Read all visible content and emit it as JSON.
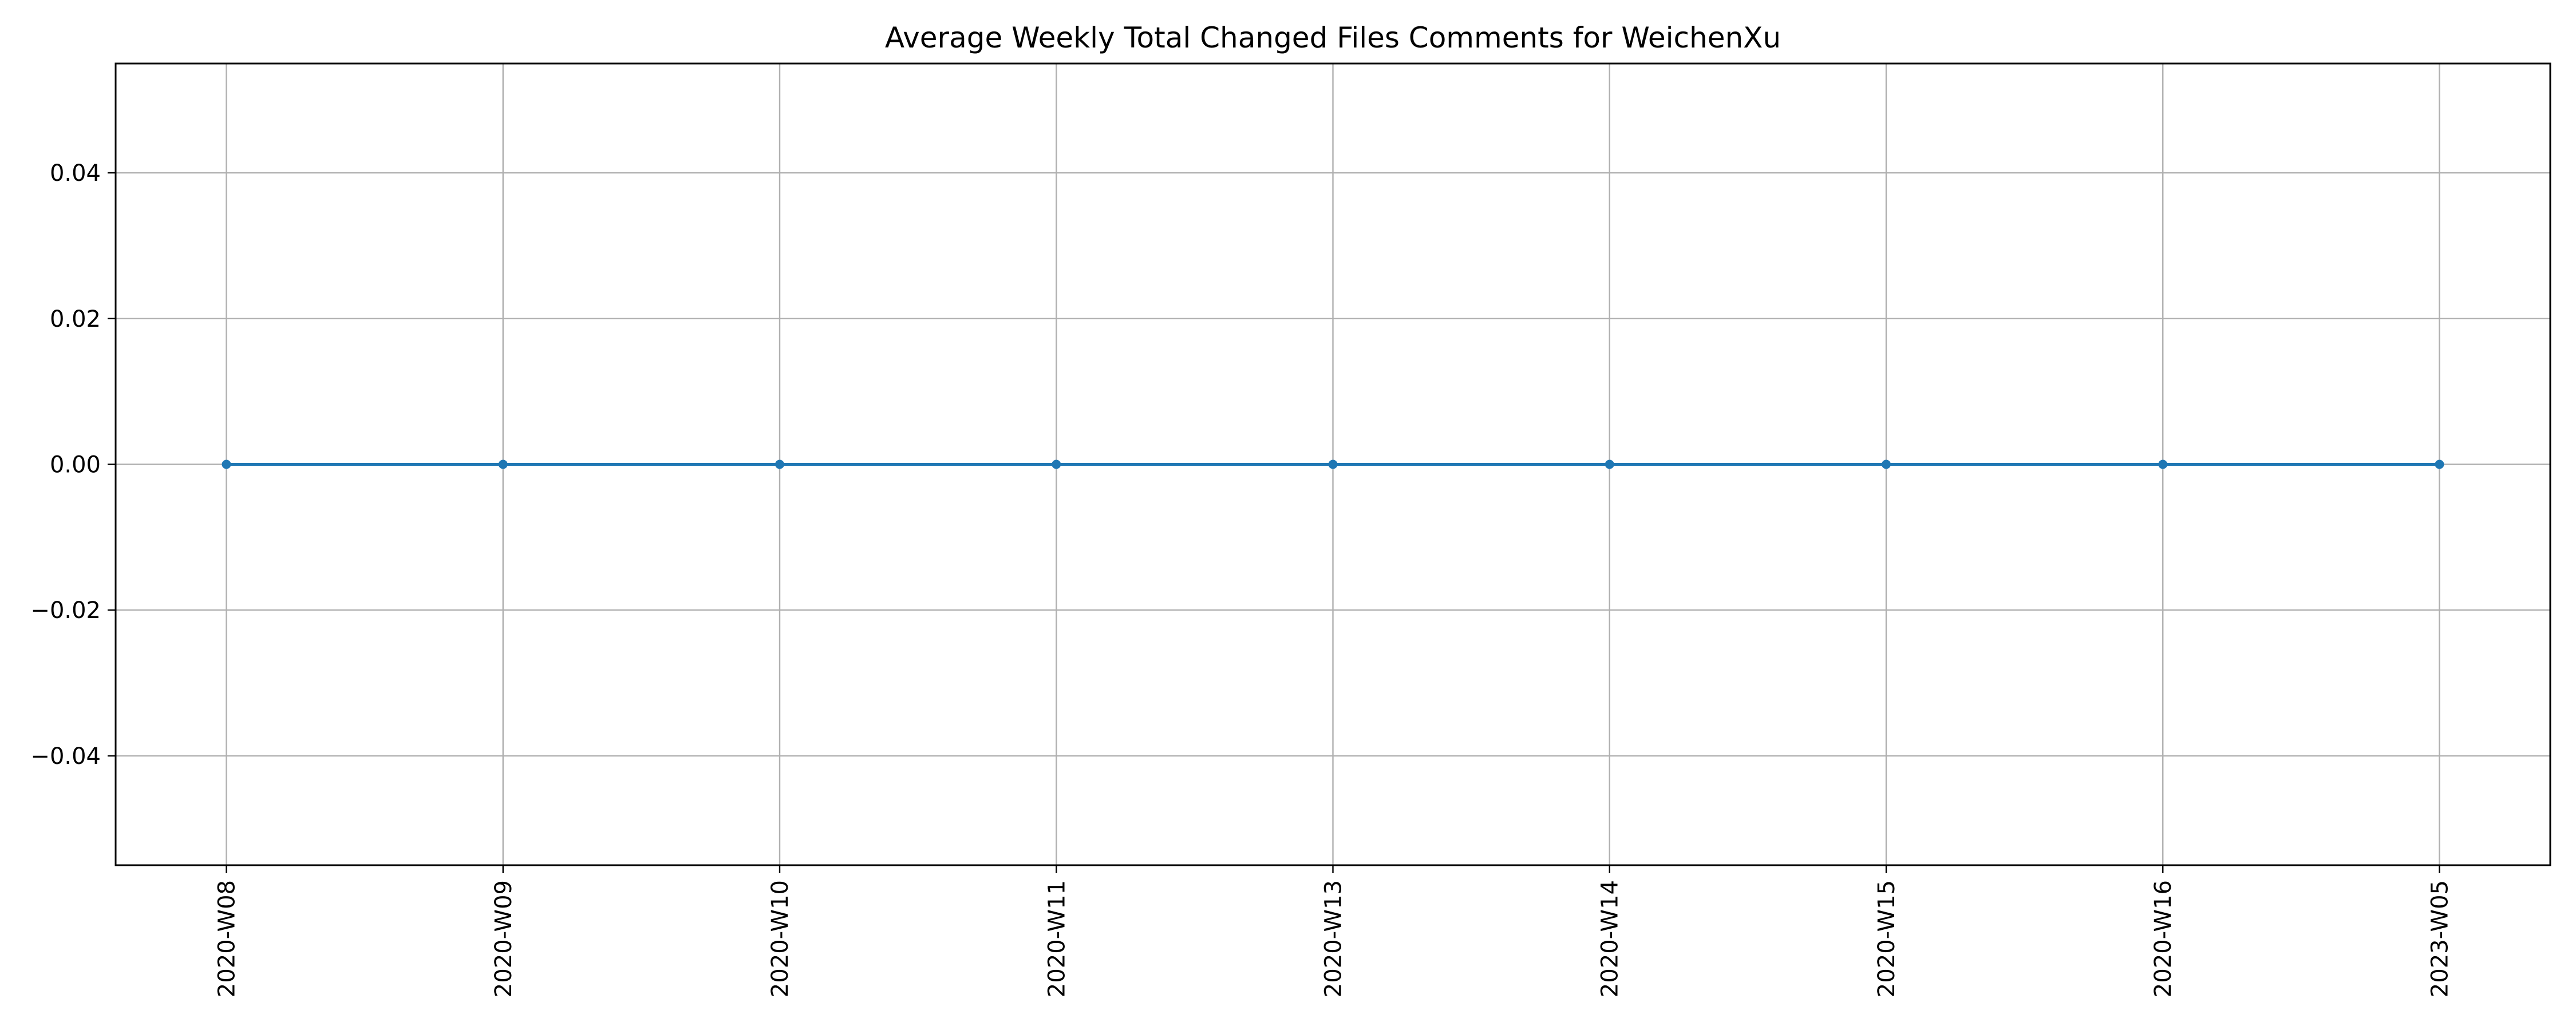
{
  "chart_data": {
    "type": "line",
    "title": "Average Weekly Total Changed Files Comments for WeichenXu",
    "xlabel": "",
    "ylabel": "",
    "categories": [
      "2020-W08",
      "2020-W09",
      "2020-W10",
      "2020-W11",
      "2020-W13",
      "2020-W14",
      "2020-W15",
      "2020-W16",
      "2023-W05"
    ],
    "series": [
      {
        "values": [
          0,
          0,
          0,
          0,
          0,
          0,
          0,
          0,
          0
        ],
        "color": "#1f77b4"
      }
    ],
    "ylim": [
      -0.055,
      0.055
    ],
    "yticks": [
      -0.04,
      -0.02,
      0.0,
      0.02,
      0.04
    ],
    "ytick_labels": [
      "−0.04",
      "−0.02",
      "0.00",
      "0.02",
      "0.04"
    ],
    "grid": true,
    "legend": "none",
    "marker": "circle"
  }
}
